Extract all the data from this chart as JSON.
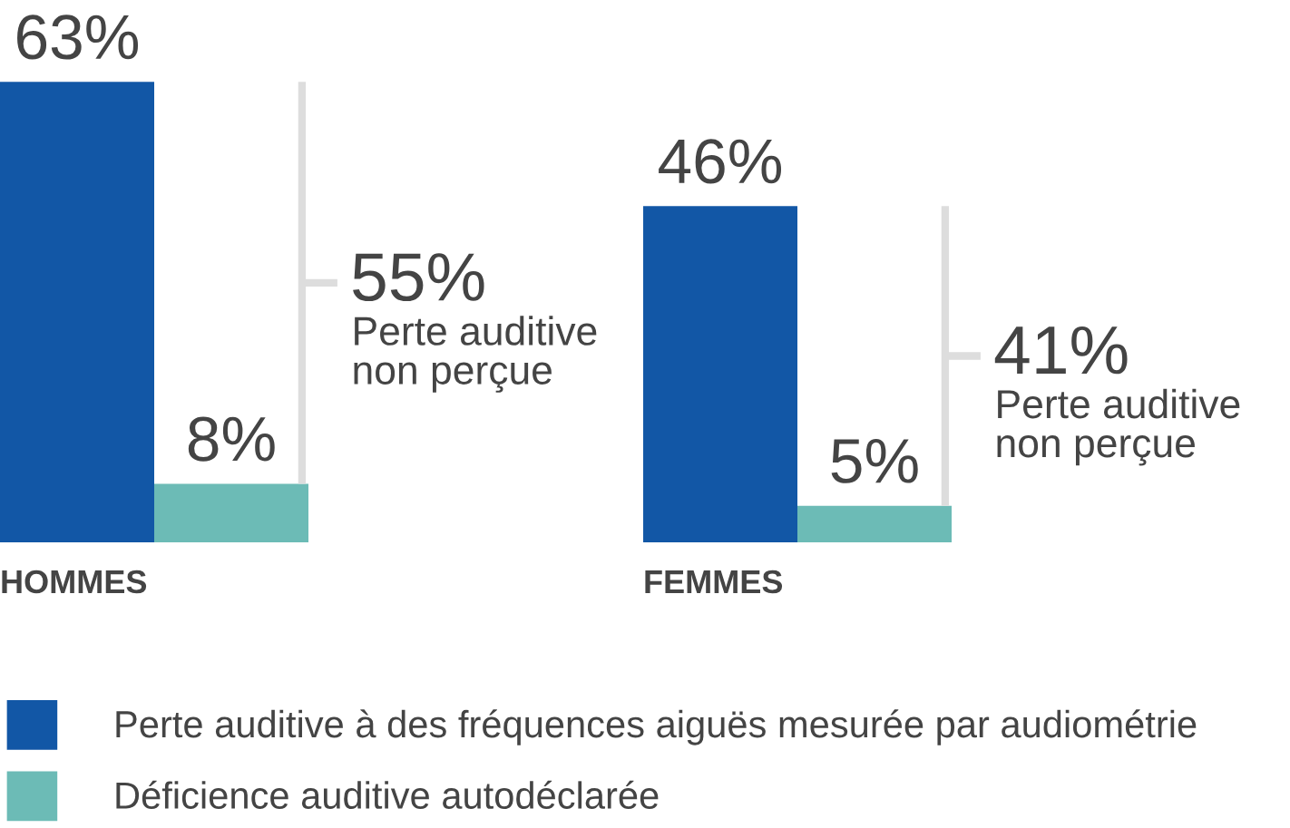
{
  "chart_data": {
    "type": "bar",
    "categories": [
      "HOMMES",
      "FEMMES"
    ],
    "series": [
      {
        "name": "Perte auditive à des fréquences aiguës mesurée par audiométrie",
        "color": "#1257a6",
        "values": [
          63,
          46
        ],
        "value_labels": [
          "63%",
          "46%"
        ]
      },
      {
        "name": "Déficience auditive autodéclarée",
        "color": "#6cbbb6",
        "values": [
          8,
          5
        ],
        "value_labels": [
          "8%",
          "5%"
        ]
      }
    ],
    "annotations": [
      "55%",
      "Perte auditive\nnon perçue",
      "41%",
      "Perte auditive\nnon perçue"
    ],
    "legend": "bottom"
  }
}
